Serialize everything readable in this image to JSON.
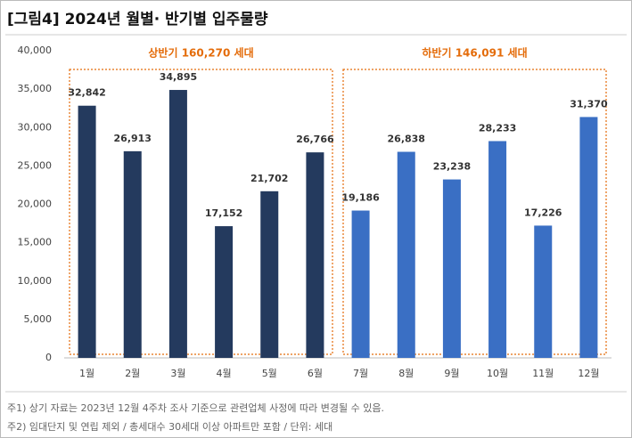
{
  "chart_data": {
    "type": "bar",
    "title": "[그림4]  2024년 월별· 반기별 입주물량",
    "categories": [
      "1월",
      "2월",
      "3월",
      "4월",
      "5월",
      "6월",
      "7월",
      "8월",
      "9월",
      "10월",
      "11월",
      "12월"
    ],
    "values": [
      32842,
      26913,
      34895,
      17152,
      21702,
      26766,
      19186,
      26838,
      23238,
      28233,
      17226,
      31370
    ],
    "value_labels": [
      "32,842",
      "26,913",
      "34,895",
      "17,152",
      "21,702",
      "26,766",
      "19,186",
      "26,838",
      "23,238",
      "28,233",
      "17,226",
      "31,370"
    ],
    "colors": [
      "#243a5e",
      "#243a5e",
      "#243a5e",
      "#243a5e",
      "#243a5e",
      "#243a5e",
      "#3a6fc4",
      "#3a6fc4",
      "#3a6fc4",
      "#3a6fc4",
      "#3a6fc4",
      "#3a6fc4"
    ],
    "ylim": [
      0,
      40000
    ],
    "yticks": [
      0,
      {
        "value": 5000,
        "label": "5,000"
      },
      {
        "value": 10000,
        "label": "10,000"
      },
      {
        "value": 15000,
        "label": "15,000"
      },
      {
        "value": 20000,
        "label": "20,000"
      },
      {
        "value": 25000,
        "label": "25,000"
      },
      {
        "value": 30000,
        "label": "30,000"
      },
      {
        "value": 35000,
        "label": "35,000"
      },
      {
        "value": 40000,
        "label": "40,000"
      }
    ],
    "grid": false,
    "annotations": [
      "상반기 160,270 세대",
      "하반기 146,091 세대"
    ],
    "notes": [
      "주1) 상기 자료는 2023년 12월 4주차 조사 기준으로 관련업체 사정에 따라 변경될 수 있음.",
      "주2) 임대단지 및 연립 제외 / 총세대수 30세대 이상 아파트만 포함 / 단위: 세대"
    ]
  }
}
